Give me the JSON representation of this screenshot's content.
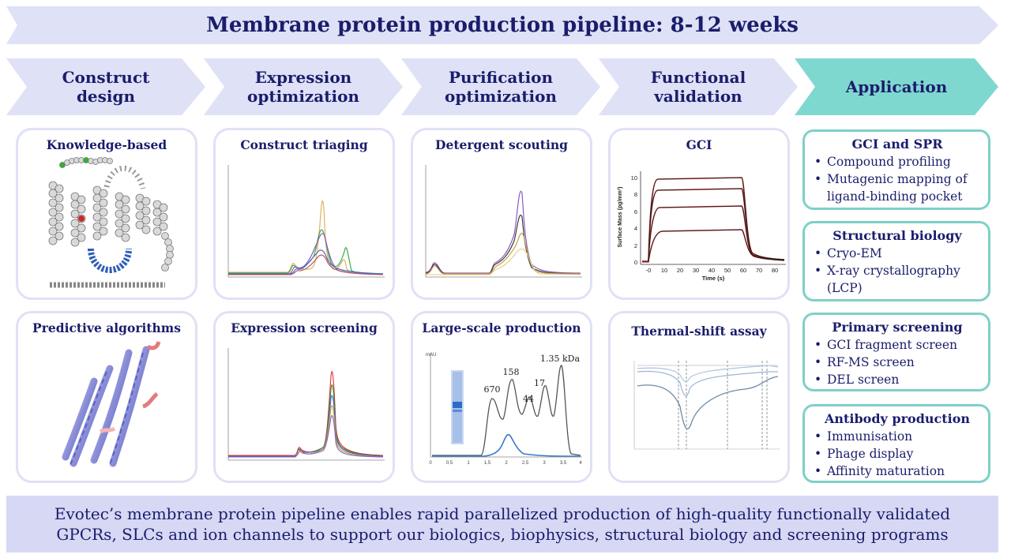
{
  "banner": {
    "title": "Membrane protein production pipeline: 8-12 weeks"
  },
  "steps": [
    {
      "line1": "Construct",
      "line2": "design"
    },
    {
      "line1": "Expression",
      "line2": "optimization"
    },
    {
      "line1": "Purification",
      "line2": "optimization"
    },
    {
      "line1": "Functional",
      "line2": "validation"
    },
    {
      "line1": "Application",
      "line2": ""
    }
  ],
  "cards": {
    "knowledge": "Knowledge-based",
    "predictive": "Predictive algorithms",
    "construct_triaging": "Construct triaging",
    "expression_screening": "Expression screening",
    "detergent_scouting": "Detergent scouting",
    "large_scale": "Large-scale production",
    "gci": "GCI",
    "thermal_shift": "Thermal-shift assay"
  },
  "gci_chart": {
    "ylabel": "Surface Mass (pg/mm²)",
    "xlabel": "Time (s)",
    "y_ticks": [
      "10",
      "8",
      "6",
      "4",
      "2",
      "0"
    ],
    "x_ticks": [
      "-0",
      "10",
      "20",
      "30",
      "40",
      "50",
      "60",
      "70",
      "80"
    ]
  },
  "large_scale_chart": {
    "peak_labels": [
      "670",
      "158",
      "44",
      "17",
      "1.35 kDa"
    ],
    "x_ticks": [
      "0",
      "0.5",
      "1",
      "1.5",
      "2",
      "2.5",
      "3",
      "3.5",
      "4"
    ],
    "y_label": "mAU"
  },
  "applications": [
    {
      "title": "GCI and SPR",
      "items": [
        "Compound profiling",
        "Mutagenic mapping of ligand-binding pocket"
      ]
    },
    {
      "title": "Structural biology",
      "items": [
        "Cryo-EM",
        "X-ray crystallography (LCP)"
      ]
    },
    {
      "title": "Primary screening",
      "items": [
        "GCI fragment screen",
        "RF-MS screen",
        "DEL screen"
      ]
    },
    {
      "title": "Antibody production",
      "items": [
        "Immunisation",
        "Phage display",
        "Affinity maturation"
      ]
    }
  ],
  "footer": {
    "line1": "Evotec’s membrane protein pipeline enables rapid parallelized production of high-quality functionally validated",
    "line2": "GPCRs, SLCs and ion channels to support our biologics, biophysics, structural biology and screening programs"
  },
  "colors": {
    "navy": "#1a1d6b",
    "chevron": "#dfe1f6",
    "teal": "#7fd8d0",
    "teal_border": "#7fd0c8",
    "footer_bg": "#d6d8f4"
  }
}
